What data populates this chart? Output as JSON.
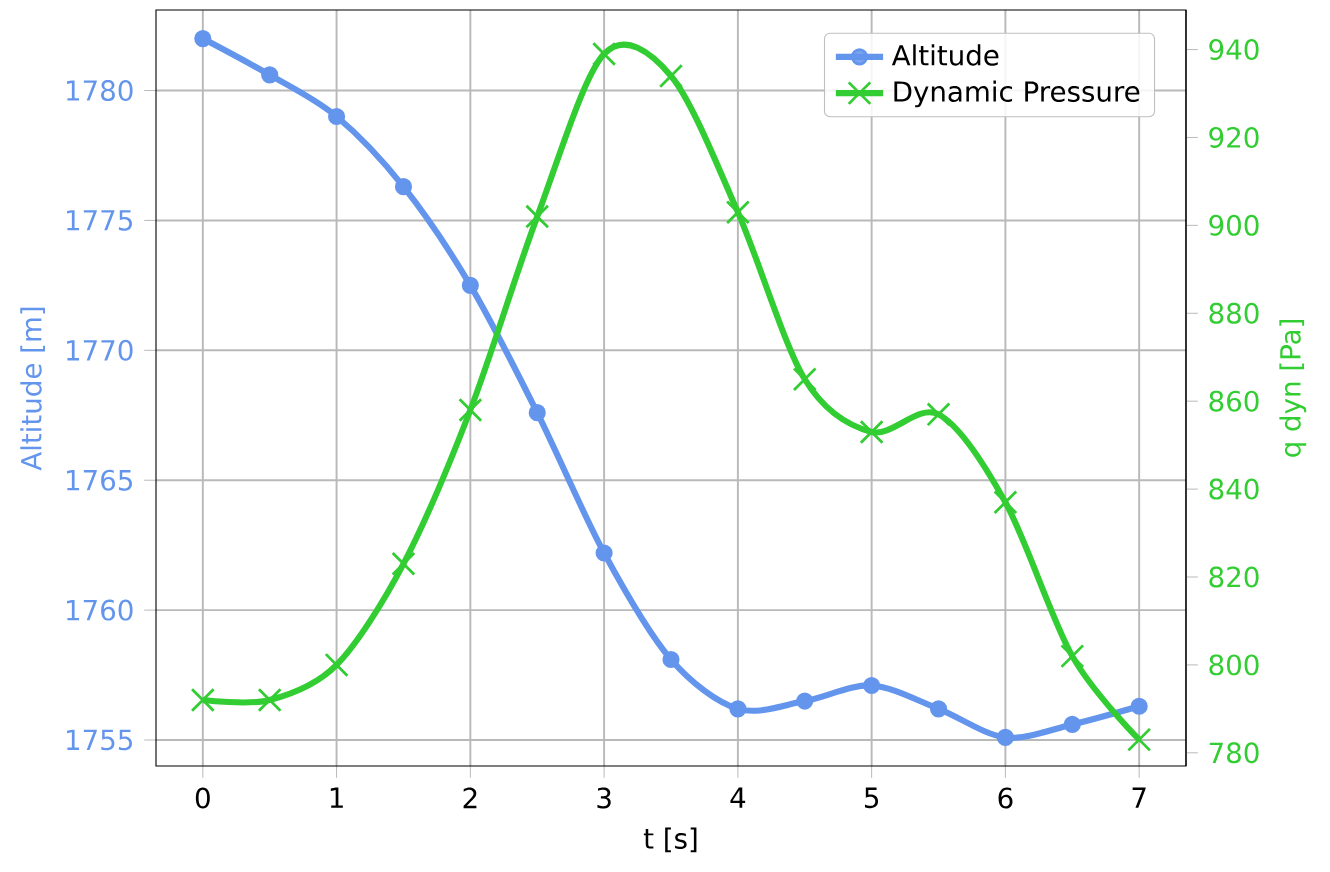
{
  "chart_data": {
    "type": "line",
    "xlabel": "t [s]",
    "ylabel": "Altitude [m]",
    "y2label": "q dyn [Pa]",
    "x": [
      0,
      0.5,
      1,
      1.5,
      2,
      2.5,
      3,
      3.5,
      4,
      4.5,
      5,
      5.5,
      6,
      6.5,
      7
    ],
    "series": [
      {
        "name": "Altitude",
        "color": "#6495ed",
        "marker": "circle",
        "values": [
          1782,
          1780.6,
          1779,
          1776.3,
          1772.5,
          1767.6,
          1762.2,
          1758.1,
          1756.2,
          1756.5,
          1757.1,
          1756.2,
          1755.1,
          1755.6,
          1756.3
        ]
      },
      {
        "name": "Dynamic Pressure",
        "color": "#32cd32",
        "marker": "cross",
        "axis": "y2",
        "values": [
          792,
          792,
          800,
          823,
          858,
          902,
          939,
          934,
          903,
          865,
          853,
          857,
          837,
          802,
          783
        ]
      }
    ],
    "xlim": [
      -0.35,
      7.35
    ],
    "ylim": [
      1754,
      1783.1
    ],
    "y2lim": [
      777,
      949
    ],
    "xticks": [
      0,
      1,
      2,
      3,
      4,
      5,
      6,
      7
    ],
    "yticks": [
      1755,
      1760,
      1765,
      1770,
      1775,
      1780
    ],
    "y2ticks": [
      780,
      800,
      820,
      840,
      860,
      880,
      900,
      920,
      940
    ],
    "grid": true,
    "legend": "top right",
    "line_style": "solid"
  }
}
